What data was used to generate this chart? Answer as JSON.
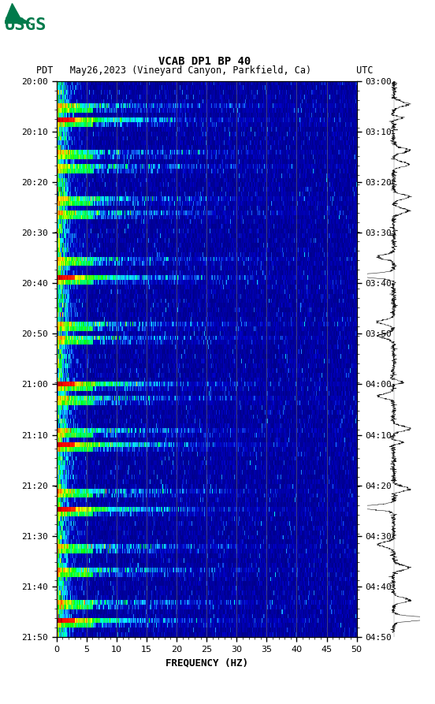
{
  "title_line1": "VCAB DP1 BP 40",
  "title_line2": "PDT   May26,2023 (Vineyard Canyon, Parkfield, Ca)        UTC",
  "xlabel": "FREQUENCY (HZ)",
  "freq_min": 0,
  "freq_max": 50,
  "freq_ticks": [
    0,
    5,
    10,
    15,
    20,
    25,
    30,
    35,
    40,
    45,
    50
  ],
  "time_labels_left": [
    "20:00",
    "20:10",
    "20:20",
    "20:30",
    "20:40",
    "20:50",
    "21:00",
    "21:10",
    "21:20",
    "21:30",
    "21:40",
    "21:50"
  ],
  "time_labels_right": [
    "03:00",
    "03:10",
    "03:20",
    "03:30",
    "03:40",
    "03:50",
    "04:00",
    "04:10",
    "04:20",
    "04:30",
    "04:40",
    "04:50"
  ],
  "n_time": 120,
  "n_freq": 500,
  "background_color": "#000000",
  "fig_bg": "#ffffff",
  "vline_color": "#808060",
  "vline_freqs": [
    5,
    10,
    15,
    20,
    25,
    30,
    35,
    40,
    45
  ],
  "usgs_color": "#007a4b",
  "spectrogram_figsize": [
    5.52,
    8.93
  ]
}
